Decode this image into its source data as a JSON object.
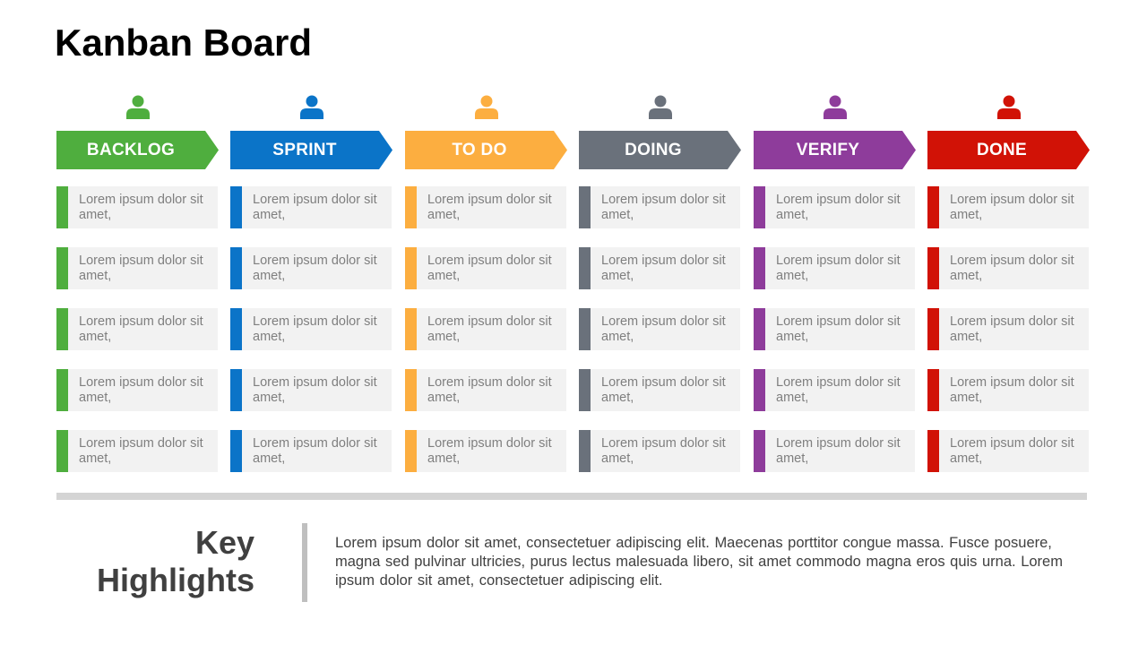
{
  "title": "Kanban Board",
  "columns": [
    {
      "label": "BACKLOG",
      "color": "#4fae3e",
      "icon": "person-icon",
      "cards": [
        "Lorem ipsum dolor sit amet,",
        "Lorem ipsum dolor sit amet,",
        "Lorem ipsum dolor sit amet,",
        "Lorem ipsum dolor sit amet,",
        "Lorem ipsum dolor sit amet,"
      ]
    },
    {
      "label": "SPRINT",
      "color": "#0b74c8",
      "icon": "person-icon",
      "cards": [
        "Lorem ipsum dolor sit amet,",
        "Lorem ipsum dolor sit amet,",
        "Lorem ipsum dolor sit amet,",
        "Lorem ipsum dolor sit amet,",
        "Lorem ipsum dolor sit amet,"
      ]
    },
    {
      "label": "TO DO",
      "color": "#fcae40",
      "icon": "person-icon",
      "cards": [
        "Lorem ipsum dolor sit amet,",
        "Lorem ipsum dolor sit amet,",
        "Lorem ipsum dolor sit amet,",
        "Lorem ipsum dolor sit amet,",
        "Lorem ipsum dolor sit amet,"
      ]
    },
    {
      "label": "DOING",
      "color": "#6a717b",
      "icon": "person-icon",
      "cards": [
        "Lorem ipsum dolor sit amet,",
        "Lorem ipsum dolor sit amet,",
        "Lorem ipsum dolor sit amet,",
        "Lorem ipsum dolor sit amet,",
        "Lorem ipsum dolor sit amet,"
      ]
    },
    {
      "label": "VERIFY",
      "color": "#8e3c9b",
      "icon": "person-icon",
      "cards": [
        "Lorem ipsum dolor sit amet,",
        "Lorem ipsum dolor sit amet,",
        "Lorem ipsum dolor sit amet,",
        "Lorem ipsum dolor sit amet,",
        "Lorem ipsum dolor sit amet,"
      ]
    },
    {
      "label": "DONE",
      "color": "#d11206",
      "icon": "person-icon",
      "cards": [
        "Lorem ipsum dolor sit amet,",
        "Lorem ipsum dolor sit amet,",
        "Lorem ipsum dolor sit amet,",
        "Lorem ipsum dolor sit amet,",
        "Lorem ipsum dolor sit amet,"
      ]
    }
  ],
  "key_highlights": {
    "title_line1": "Key",
    "title_line2": "Highlights",
    "body": "Lorem ipsum dolor sit amet, consectetuer adipiscing elit. Maecenas porttitor congue massa. Fusce posuere, magna sed pulvinar ultricies, purus lectus malesuada libero, sit amet commodo magna eros quis urna. Lorem ipsum dolor sit amet, consectetuer adipiscing elit."
  }
}
